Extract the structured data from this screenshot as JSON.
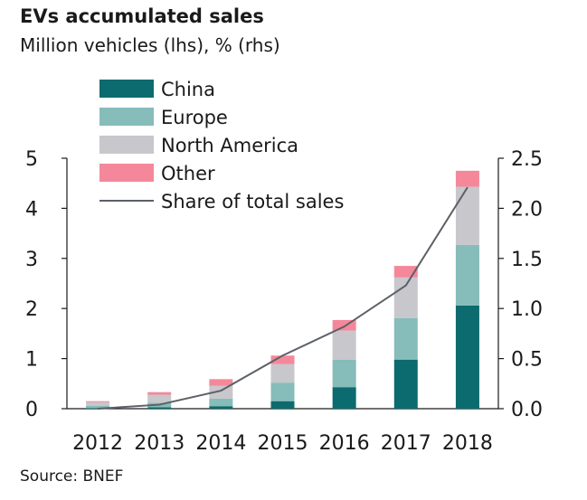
{
  "title": "EVs accumulated sales",
  "subtitle": "Million vehicles (lhs), % (rhs)",
  "source": "Source: BNEF",
  "chart_data": {
    "type": "bar",
    "stacked": true,
    "categories": [
      "2012",
      "2013",
      "2014",
      "2015",
      "2016",
      "2017",
      "2018"
    ],
    "series": [
      {
        "name": "China",
        "color": "#0c6b6e",
        "values": [
          0.01,
          0.03,
          0.05,
          0.15,
          0.43,
          0.98,
          2.06
        ]
      },
      {
        "name": "Europe",
        "color": "#86bcba",
        "values": [
          0.05,
          0.09,
          0.15,
          0.37,
          0.55,
          0.83,
          1.21
        ]
      },
      {
        "name": "North America",
        "color": "#c7c7cc",
        "values": [
          0.07,
          0.16,
          0.26,
          0.37,
          0.58,
          0.81,
          1.16
        ]
      },
      {
        "name": "Other",
        "color": "#f4889a",
        "values": [
          0.02,
          0.05,
          0.13,
          0.17,
          0.21,
          0.23,
          0.32
        ]
      }
    ],
    "line_series": {
      "name": "Share of total sales",
      "axis": "right",
      "color": "#5c6067",
      "values": [
        0.0,
        0.04,
        0.18,
        0.53,
        0.82,
        1.23,
        2.21
      ]
    },
    "y_left": {
      "min": 0,
      "max": 5,
      "ticks": [
        "0",
        "1",
        "2",
        "3",
        "4",
        "5"
      ]
    },
    "y_right": {
      "min": 0,
      "max": 2.5,
      "ticks": [
        "0.0",
        "0.5",
        "1.0",
        "1.5",
        "2.0",
        "2.5"
      ]
    },
    "legend_position": "top-left"
  }
}
